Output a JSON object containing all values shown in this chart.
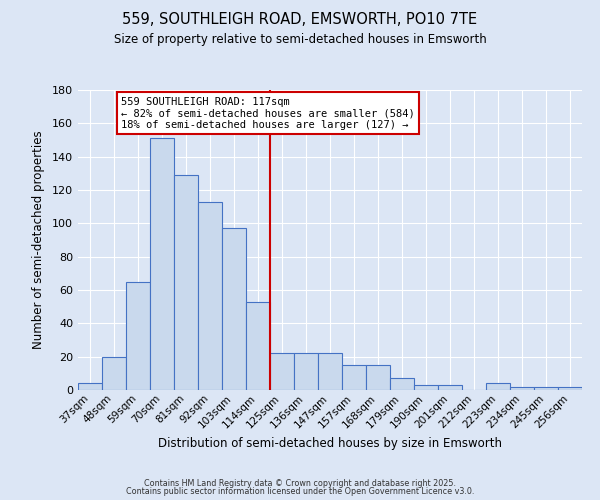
{
  "title1": "559, SOUTHLEIGH ROAD, EMSWORTH, PO10 7TE",
  "title2": "Size of property relative to semi-detached houses in Emsworth",
  "xlabel": "Distribution of semi-detached houses by size in Emsworth",
  "ylabel": "Number of semi-detached properties",
  "categories": [
    "37sqm",
    "48sqm",
    "59sqm",
    "70sqm",
    "81sqm",
    "92sqm",
    "103sqm",
    "114sqm",
    "125sqm",
    "136sqm",
    "147sqm",
    "157sqm",
    "168sqm",
    "179sqm",
    "190sqm",
    "201sqm",
    "212sqm",
    "223sqm",
    "234sqm",
    "245sqm",
    "256sqm"
  ],
  "values": [
    4,
    20,
    65,
    151,
    129,
    113,
    97,
    53,
    22,
    22,
    22,
    15,
    15,
    7,
    3,
    3,
    0,
    4,
    2,
    2,
    2
  ],
  "bar_color": "#c9d9ed",
  "bar_edge_color": "#4472c4",
  "vline_x": 7.5,
  "vline_color": "#cc0000",
  "annotation_line1": "559 SOUTHLEIGH ROAD: 117sqm",
  "annotation_line2": "← 82% of semi-detached houses are smaller (584)",
  "annotation_line3": "18% of semi-detached houses are larger (127) →",
  "annotation_box_color": "#cc0000",
  "ylim": [
    0,
    180
  ],
  "yticks": [
    0,
    20,
    40,
    60,
    80,
    100,
    120,
    140,
    160,
    180
  ],
  "background_color": "#dce6f5",
  "grid_color": "#ffffff",
  "footer1": "Contains HM Land Registry data © Crown copyright and database right 2025.",
  "footer2": "Contains public sector information licensed under the Open Government Licence v3.0."
}
